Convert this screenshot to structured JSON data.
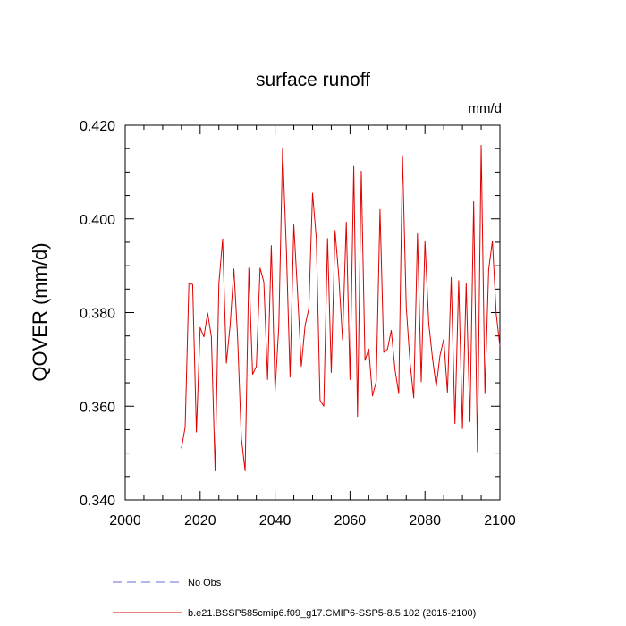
{
  "chart_data": {
    "type": "line",
    "title": "surface runoff",
    "units_label": "mm/d",
    "xlabel": "",
    "ylabel": "QOVER  (mm/d)",
    "xlim": [
      2000,
      2100
    ],
    "ylim": [
      0.34,
      0.42
    ],
    "x_ticks": [
      2000,
      2020,
      2040,
      2060,
      2080,
      2100
    ],
    "x_tick_labels": [
      "2000",
      "2020",
      "2040",
      "2060",
      "2080",
      "2100"
    ],
    "y_ticks": [
      0.34,
      0.36,
      0.38,
      0.4,
      0.42
    ],
    "y_tick_labels": [
      "0.340",
      "0.360",
      "0.380",
      "0.400",
      "0.420"
    ],
    "grid": false,
    "legend_placement": "bottom",
    "series": [
      {
        "name": "No Obs",
        "color": "#6b6bdc",
        "dash": "dashed",
        "x": [],
        "values": []
      },
      {
        "name": "b.e21.BSSP585cmip6.f09_g17.CMIP6-SSP5-8.5.102 (2015-2100)",
        "color": "#e00000",
        "dash": "solid",
        "x": [
          2015,
          2016,
          2017,
          2018,
          2019,
          2020,
          2021,
          2022,
          2023,
          2024,
          2025,
          2026,
          2027,
          2028,
          2029,
          2030,
          2031,
          2032,
          2033,
          2034,
          2035,
          2036,
          2037,
          2038,
          2039,
          2040,
          2041,
          2042,
          2043,
          2044,
          2045,
          2046,
          2047,
          2048,
          2049,
          2050,
          2051,
          2052,
          2053,
          2054,
          2055,
          2056,
          2057,
          2058,
          2059,
          2060,
          2061,
          2062,
          2063,
          2064,
          2065,
          2066,
          2067,
          2068,
          2069,
          2070,
          2071,
          2072,
          2073,
          2074,
          2075,
          2076,
          2077,
          2078,
          2079,
          2080,
          2081,
          2082,
          2083,
          2084,
          2085,
          2086,
          2087,
          2088,
          2089,
          2090,
          2091,
          2092,
          2093,
          2094,
          2095,
          2096,
          2097,
          2098,
          2099,
          2100
        ],
        "values": [
          0.351,
          0.3555,
          0.3862,
          0.386,
          0.3545,
          0.3768,
          0.3748,
          0.3799,
          0.3748,
          0.3462,
          0.3862,
          0.3957,
          0.3692,
          0.3772,
          0.3893,
          0.3748,
          0.3532,
          0.3462,
          0.3895,
          0.3668,
          0.3685,
          0.3895,
          0.3865,
          0.3657,
          0.3943,
          0.3632,
          0.3772,
          0.415,
          0.3938,
          0.3662,
          0.3987,
          0.3843,
          0.3685,
          0.3772,
          0.3808,
          0.4055,
          0.3958,
          0.3613,
          0.36,
          0.3958,
          0.3672,
          0.3975,
          0.3878,
          0.3742,
          0.3993,
          0.3657,
          0.4112,
          0.3578,
          0.4102,
          0.3698,
          0.3722,
          0.3622,
          0.3653,
          0.402,
          0.3715,
          0.3722,
          0.3762,
          0.3678,
          0.3627,
          0.4135,
          0.3812,
          0.3695,
          0.3618,
          0.3968,
          0.3652,
          0.3953,
          0.3778,
          0.3703,
          0.3642,
          0.3708,
          0.3743,
          0.363,
          0.3875,
          0.3563,
          0.3868,
          0.3552,
          0.3862,
          0.3567,
          0.4037,
          0.3503,
          0.4157,
          0.3627,
          0.3892,
          0.3953,
          0.3798,
          0.3728
        ]
      }
    ]
  }
}
